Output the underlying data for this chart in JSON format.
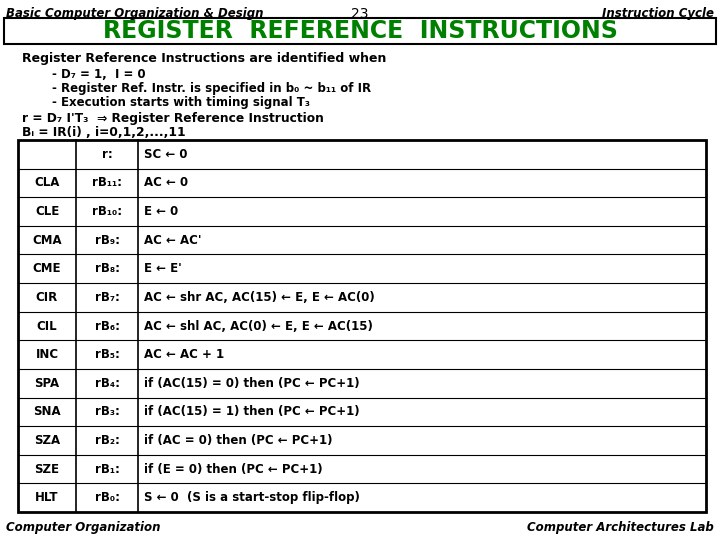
{
  "title_header_left": "Basic Computer Organization & Design",
  "title_header_center": "23",
  "title_header_right": "Instruction Cycle",
  "main_title": "REGISTER  REFERENCE  INSTRUCTIONS",
  "main_title_color": "#008000",
  "bg_color": "#ffffff",
  "subtitle": "Register Reference Instructions are identified when",
  "bullets": [
    "D₇ = 1,  I = 0",
    "Register Ref. Instr. is specified in b₀ ~ b₁₁ of IR",
    "Execution starts with timing signal T₃"
  ],
  "formula_line1": "r = D₇ I'T₃  ⇒ Register Reference Instruction",
  "formula_line2": "Bᵢ = IR(i) , i=0,1,2,...,11",
  "table_col1": [
    "CLA",
    "CLE",
    "CMA",
    "CME",
    "CIR",
    "CIL",
    "INC",
    "SPA",
    "SNA",
    "SZA",
    "SZE",
    "HLT"
  ],
  "table_col2": [
    "r:",
    "rB₁₁:",
    "rB₁₀:",
    "rB₉:",
    "rB₈:",
    "rB₇:",
    "rB₆:",
    "rB₅:",
    "rB₄:",
    "rB₃:",
    "rB₂:",
    "rB₁:",
    "rB₀:"
  ],
  "table_col3": [
    "SC ← 0",
    "AC ← 0",
    "E ← 0",
    "AC ← AC'",
    "E ← E'",
    "AC ← shr AC, AC(15) ← E, E ← AC(0)",
    "AC ← shl AC, AC(0) ← E, E ← AC(15)",
    "AC ← AC + 1",
    "if (AC(15) = 0) then (PC ← PC+1)",
    "if (AC(15) = 1) then (PC ← PC+1)",
    "if (AC = 0) then (PC ← PC+1)",
    "if (E = 0) then (PC ← PC+1)",
    "S ← 0  (S is a start-stop flip-flop)"
  ],
  "footer_left": "Computer Organization",
  "footer_right": "Computer Architectures Lab"
}
